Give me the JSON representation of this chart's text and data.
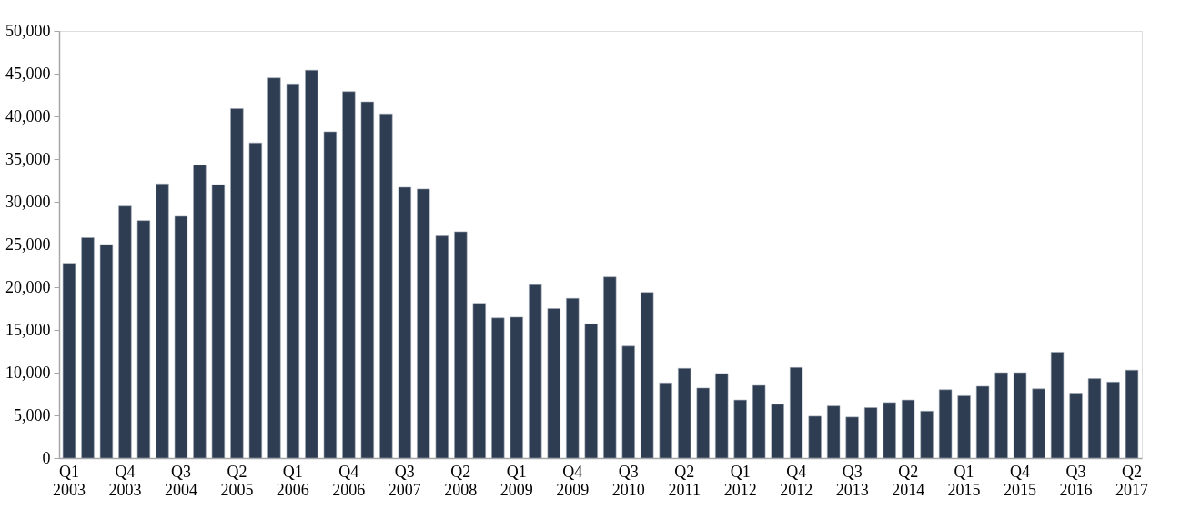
{
  "chart_data": {
    "type": "bar",
    "categories": [
      "Q1 2003",
      null,
      null,
      "Q4 2003",
      null,
      null,
      "Q3 2004",
      null,
      null,
      "Q2 2005",
      null,
      null,
      "Q1 2006",
      null,
      null,
      "Q4 2006",
      null,
      null,
      "Q3 2007",
      null,
      null,
      "Q2 2008",
      null,
      null,
      "Q1 2009",
      null,
      null,
      "Q4 2009",
      null,
      null,
      "Q3 2010",
      null,
      null,
      "Q2 2011",
      null,
      null,
      "Q1 2012",
      null,
      null,
      "Q4 2012",
      null,
      null,
      "Q3 2013",
      null,
      null,
      "Q2 2014",
      null,
      null,
      "Q1 2015",
      null,
      null,
      "Q4 2015",
      null,
      null,
      "Q3 2016",
      null,
      null,
      "Q2 2017"
    ],
    "values": [
      22800,
      25800,
      25000,
      29500,
      27800,
      32100,
      28300,
      34300,
      32000,
      40900,
      36900,
      44500,
      43800,
      45400,
      38200,
      42900,
      41700,
      40300,
      31700,
      31500,
      26000,
      26500,
      18100,
      16400,
      16500,
      20300,
      17500,
      18700,
      15700,
      21200,
      13100,
      19400,
      8800,
      10500,
      8200,
      9900,
      6800,
      8500,
      6300,
      10600,
      4900,
      6100,
      4800,
      5900,
      6500,
      6800,
      5500,
      8000,
      7300,
      8400,
      10000,
      10000,
      8100,
      12400,
      7600,
      9300,
      8900,
      10300
    ],
    "color": "#2f3d52",
    "ylim": [
      0,
      50000
    ],
    "yticks": [
      {
        "value": 0,
        "label": "0"
      },
      {
        "value": 5000,
        "label": "5,000"
      },
      {
        "value": 10000,
        "label": "10,000"
      },
      {
        "value": 15000,
        "label": "15,000"
      },
      {
        "value": 20000,
        "label": "20,000"
      },
      {
        "value": 25000,
        "label": "25,000"
      },
      {
        "value": 30000,
        "label": "30,000"
      },
      {
        "value": 35000,
        "label": "35,000"
      },
      {
        "value": 40000,
        "label": "40,000"
      },
      {
        "value": 45000,
        "label": "45,000"
      },
      {
        "value": 50000,
        "label": "50,000"
      }
    ],
    "grid": false
  }
}
